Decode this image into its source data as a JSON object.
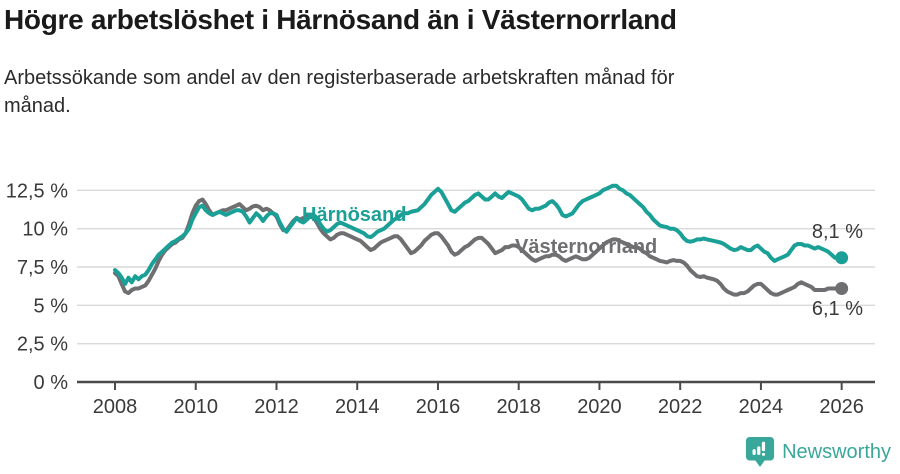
{
  "header": {
    "title": "Högre arbetslöshet i Härnösand än i Västernorrland",
    "subtitle": "Arbetssökande som andel av den registerbaserade arbetskraften månad för månad."
  },
  "colors": {
    "harnosand_teal": "#1aa097",
    "vasternorrland_gray": "#6f6f72",
    "axis_text": "#3a3a3a",
    "gridline": "#d9d9d9",
    "axis_line": "#4b4b4b",
    "brand_teal": "#3aa79b"
  },
  "chart_data": {
    "type": "line",
    "unit": "%",
    "frequency": "monthly",
    "x_start": "2008-01",
    "x_end": "2026-01",
    "ylim": [
      0,
      13.3
    ],
    "grid": true,
    "y_ticks": [
      {
        "value": 0,
        "label": "0 %"
      },
      {
        "value": 2.5,
        "label": "2,5 %"
      },
      {
        "value": 5,
        "label": "5 %"
      },
      {
        "value": 7.5,
        "label": "7,5 %"
      },
      {
        "value": 10,
        "label": "10 %"
      },
      {
        "value": 12.5,
        "label": "12,5 %"
      }
    ],
    "x_ticks": [
      {
        "year": 2008,
        "label": "2008"
      },
      {
        "year": 2010,
        "label": "2010"
      },
      {
        "year": 2012,
        "label": "2012"
      },
      {
        "year": 2014,
        "label": "2014"
      },
      {
        "year": 2016,
        "label": "2016"
      },
      {
        "year": 2018,
        "label": "2018"
      },
      {
        "year": 2020,
        "label": "2020"
      },
      {
        "year": 2022,
        "label": "2022"
      },
      {
        "year": 2024,
        "label": "2024"
      },
      {
        "year": 2026,
        "label": "2026"
      }
    ],
    "series": [
      {
        "name": "Härnösand",
        "color": "#1aa097",
        "end_label": "8,1 %",
        "end_value": 8.1,
        "values": [
          7.3,
          7.1,
          6.8,
          6.4,
          6.8,
          6.5,
          6.9,
          6.7,
          6.9,
          7.0,
          7.3,
          7.7,
          8.0,
          8.3,
          8.5,
          8.7,
          8.9,
          9.1,
          9.2,
          9.35,
          9.5,
          9.7,
          10.0,
          10.6,
          11.0,
          11.4,
          11.5,
          11.2,
          11.0,
          10.9,
          11.0,
          11.1,
          11.0,
          10.9,
          11.0,
          11.1,
          11.2,
          11.2,
          11.1,
          10.8,
          10.4,
          10.7,
          11.0,
          10.8,
          10.5,
          10.8,
          11.0,
          11.0,
          10.9,
          10.4,
          10.0,
          9.8,
          10.1,
          10.4,
          10.7,
          10.5,
          10.4,
          10.6,
          10.8,
          10.9,
          10.7,
          10.3,
          10.0,
          9.8,
          9.9,
          10.1,
          10.3,
          10.4,
          10.3,
          10.2,
          10.1,
          10.0,
          9.9,
          9.8,
          9.7,
          9.5,
          9.45,
          9.6,
          9.8,
          9.9,
          10.0,
          10.2,
          10.4,
          10.6,
          10.7,
          10.9,
          11.0,
          11.0,
          11.1,
          11.15,
          11.2,
          11.4,
          11.6,
          11.9,
          12.2,
          12.4,
          12.6,
          12.4,
          12.0,
          11.6,
          11.2,
          11.1,
          11.3,
          11.5,
          11.7,
          11.8,
          12.0,
          12.2,
          12.3,
          12.1,
          11.9,
          11.9,
          12.1,
          12.3,
          12.1,
          12.0,
          12.2,
          12.4,
          12.3,
          12.2,
          12.1,
          11.9,
          11.6,
          11.3,
          11.2,
          11.3,
          11.3,
          11.4,
          11.5,
          11.7,
          11.8,
          11.6,
          11.3,
          10.9,
          10.8,
          10.9,
          11.0,
          11.3,
          11.6,
          11.8,
          11.9,
          12.0,
          12.1,
          12.2,
          12.3,
          12.5,
          12.6,
          12.7,
          12.8,
          12.8,
          12.6,
          12.5,
          12.3,
          12.2,
          12.0,
          11.8,
          11.6,
          11.4,
          11.1,
          10.9,
          10.6,
          10.4,
          10.2,
          10.15,
          10.1,
          10.0,
          10.0,
          9.9,
          9.7,
          9.4,
          9.2,
          9.15,
          9.2,
          9.3,
          9.3,
          9.35,
          9.3,
          9.25,
          9.2,
          9.15,
          9.1,
          9.0,
          8.85,
          8.7,
          8.6,
          8.65,
          8.8,
          8.7,
          8.6,
          8.6,
          8.8,
          8.9,
          8.7,
          8.5,
          8.4,
          8.1,
          7.9,
          8.0,
          8.1,
          8.2,
          8.3,
          8.6,
          8.9,
          9.0,
          9.0,
          8.9,
          8.9,
          8.8,
          8.7,
          8.8,
          8.7,
          8.6,
          8.5,
          8.3,
          8.1,
          8.1,
          8.1
        ]
      },
      {
        "name": "Västernorrland",
        "color": "#6f6f72",
        "end_label": "6,1 %",
        "end_value": 6.1,
        "values": [
          7.1,
          6.9,
          6.4,
          5.9,
          5.8,
          6.0,
          6.1,
          6.1,
          6.2,
          6.3,
          6.6,
          7.0,
          7.4,
          7.9,
          8.3,
          8.6,
          8.8,
          9.0,
          9.1,
          9.3,
          9.4,
          9.7,
          10.3,
          11.0,
          11.5,
          11.8,
          11.9,
          11.6,
          11.2,
          10.9,
          11.0,
          11.1,
          11.2,
          11.2,
          11.3,
          11.4,
          11.5,
          11.6,
          11.4,
          11.2,
          11.3,
          11.45,
          11.5,
          11.4,
          11.2,
          11.3,
          11.2,
          11.0,
          10.8,
          10.3,
          9.9,
          9.9,
          10.2,
          10.5,
          10.7,
          10.6,
          10.7,
          10.8,
          10.8,
          10.7,
          10.4,
          10.0,
          9.7,
          9.5,
          9.3,
          9.4,
          9.6,
          9.7,
          9.7,
          9.6,
          9.5,
          9.4,
          9.3,
          9.2,
          9.0,
          8.8,
          8.6,
          8.7,
          8.9,
          9.1,
          9.2,
          9.3,
          9.4,
          9.5,
          9.5,
          9.3,
          9.0,
          8.7,
          8.4,
          8.5,
          8.7,
          8.9,
          9.2,
          9.4,
          9.6,
          9.7,
          9.7,
          9.5,
          9.2,
          8.9,
          8.5,
          8.3,
          8.4,
          8.6,
          8.8,
          8.9,
          9.1,
          9.3,
          9.4,
          9.4,
          9.2,
          9.0,
          8.7,
          8.4,
          8.5,
          8.6,
          8.8,
          8.8,
          8.9,
          8.9,
          8.8,
          8.6,
          8.4,
          8.2,
          8.0,
          7.9,
          8.0,
          8.1,
          8.2,
          8.2,
          8.3,
          8.3,
          8.2,
          8.0,
          7.9,
          8.0,
          8.1,
          8.2,
          8.1,
          8.0,
          8.0,
          8.1,
          8.3,
          8.5,
          8.7,
          8.9,
          9.1,
          9.2,
          9.3,
          9.3,
          9.2,
          9.1,
          9.0,
          8.9,
          8.8,
          8.8,
          8.7,
          8.5,
          8.4,
          8.2,
          8.1,
          8.0,
          7.9,
          7.85,
          7.8,
          7.9,
          7.95,
          7.9,
          7.9,
          7.8,
          7.6,
          7.3,
          7.1,
          6.9,
          6.85,
          6.9,
          6.8,
          6.75,
          6.7,
          6.6,
          6.4,
          6.1,
          5.9,
          5.8,
          5.7,
          5.7,
          5.8,
          5.8,
          5.9,
          6.1,
          6.3,
          6.4,
          6.4,
          6.2,
          6.0,
          5.8,
          5.7,
          5.7,
          5.8,
          5.9,
          6.0,
          6.1,
          6.2,
          6.4,
          6.5,
          6.4,
          6.3,
          6.2,
          6.0,
          6.0,
          6.0,
          6.0,
          6.1,
          6.1,
          6.1,
          6.1,
          6.1
        ]
      }
    ]
  },
  "footer": {
    "brand": "Newsworthy"
  }
}
